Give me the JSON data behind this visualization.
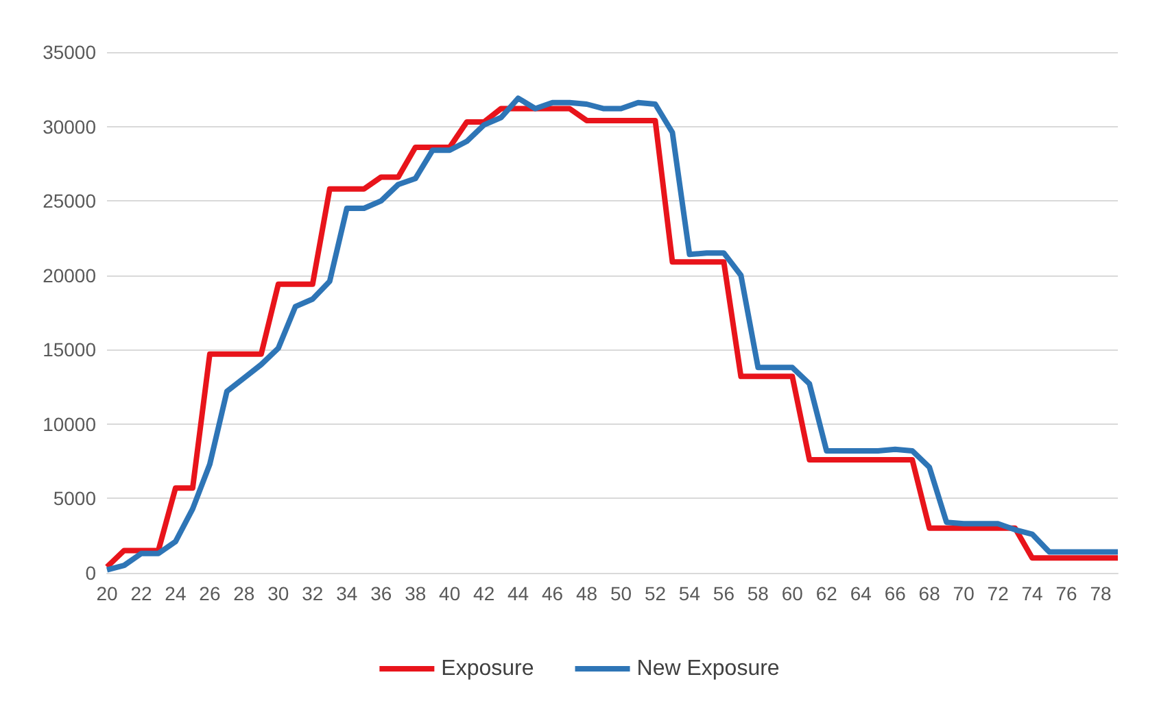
{
  "chart_data": {
    "type": "line",
    "categories": [
      "20",
      null,
      "22",
      null,
      "24",
      null,
      "26",
      null,
      "28",
      null,
      "30",
      null,
      "32",
      null,
      "34",
      null,
      "36",
      null,
      "38",
      null,
      "40",
      null,
      "42",
      null,
      "44",
      null,
      "46",
      null,
      "48",
      null,
      "50",
      null,
      "52",
      null,
      "54",
      null,
      "56",
      null,
      "58",
      null,
      "60",
      null,
      "62",
      null,
      "64",
      null,
      "66",
      null,
      "68",
      null,
      "70",
      null,
      "72",
      null,
      "74",
      null,
      "76",
      null,
      "78",
      null
    ],
    "series": [
      {
        "name": "Exposure",
        "color": "#e8141b",
        "values": [
          400,
          1500,
          1500,
          1500,
          5700,
          5700,
          14700,
          14700,
          14700,
          14700,
          19400,
          19400,
          19400,
          25800,
          25800,
          25800,
          26600,
          26600,
          28600,
          28600,
          28600,
          30300,
          30300,
          31200,
          31200,
          31200,
          31200,
          31200,
          30400,
          30400,
          30400,
          30400,
          30400,
          20900,
          20900,
          20900,
          20900,
          13200,
          13200,
          13200,
          13200,
          7600,
          7600,
          7600,
          7600,
          7600,
          7600,
          7600,
          3000,
          3000,
          3000,
          3000,
          3000,
          3000,
          1000,
          1000,
          1000,
          1000,
          1000,
          1000
        ]
      },
      {
        "name": "New Exposure",
        "color": "#2e75b6",
        "values": [
          200,
          500,
          1300,
          1300,
          2100,
          4300,
          7300,
          12200,
          13100,
          14000,
          15100,
          17900,
          18400,
          19600,
          24500,
          24500,
          25000,
          26100,
          26500,
          28400,
          28400,
          29000,
          30100,
          30600,
          31900,
          31200,
          31600,
          31600,
          31500,
          31200,
          31200,
          31600,
          31500,
          29600,
          21400,
          21500,
          21500,
          20000,
          13800,
          13800,
          13800,
          12700,
          8200,
          8200,
          8200,
          8200,
          8300,
          8200,
          7100,
          3400,
          3300,
          3300,
          3300,
          2900,
          2600,
          1400,
          1400,
          1400,
          1400,
          1400
        ]
      }
    ],
    "ylim": [
      0,
      35000
    ],
    "yticks": [
      0,
      5000,
      10000,
      15000,
      20000,
      25000,
      30000,
      35000
    ],
    "grid": "y",
    "legend": "bottom",
    "marker": "none"
  }
}
